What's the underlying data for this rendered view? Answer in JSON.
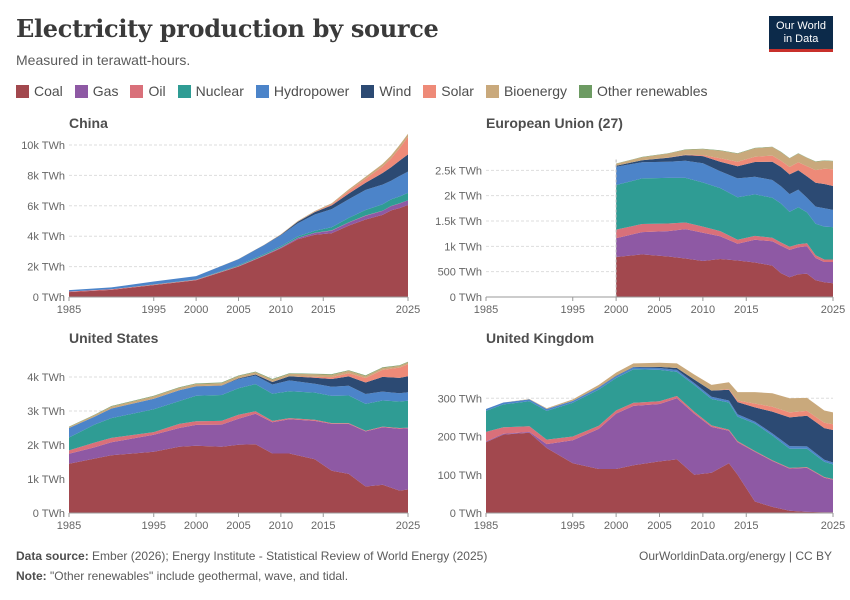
{
  "header": {
    "title": "Electricity production by source",
    "subtitle": "Measured in terawatt-hours.",
    "logo_line1": "Our World",
    "logo_line2": "in Data"
  },
  "legend": [
    {
      "name": "Coal",
      "color": "#a2484e"
    },
    {
      "name": "Gas",
      "color": "#8e59a4"
    },
    {
      "name": "Oil",
      "color": "#d9707a"
    },
    {
      "name": "Nuclear",
      "color": "#2f9c94"
    },
    {
      "name": "Hydropower",
      "color": "#4c84c9"
    },
    {
      "name": "Wind",
      "color": "#2c4a73"
    },
    {
      "name": "Solar",
      "color": "#ee8a78"
    },
    {
      "name": "Bioenergy",
      "color": "#c9a97c"
    },
    {
      "name": "Other renewables",
      "color": "#6d9b63"
    }
  ],
  "footer": {
    "source_label": "Data source:",
    "source_text": "Ember (2026); Energy Institute - Statistical Review of World Energy (2025)",
    "note_label": "Note:",
    "note_text": "\"Other renewables\" include geothermal, wave, and tidal.",
    "url": "OurWorldinData.org/energy | CC BY"
  },
  "chart_data": [
    {
      "type": "area",
      "title": "China",
      "ylim": [
        0,
        10000
      ],
      "yticks": [
        0,
        2000,
        4000,
        6000,
        8000,
        10000
      ],
      "ytick_labels": [
        "0 TWh",
        "2k TWh",
        "4k TWh",
        "6k TWh",
        "8k TWh",
        "10k TWh"
      ],
      "xlim": [
        1985,
        2025
      ],
      "xticks": [
        1985,
        1995,
        2000,
        2005,
        2010,
        2015,
        2025
      ],
      "x": [
        1985,
        1990,
        1995,
        2000,
        2005,
        2008,
        2010,
        2012,
        2014,
        2016,
        2018,
        2020,
        2022,
        2023,
        2024,
        2025
      ],
      "series": [
        {
          "name": "Coal",
          "values": [
            320,
            470,
            780,
            1100,
            2000,
            2700,
            3200,
            3800,
            4100,
            4200,
            4700,
            5100,
            5400,
            5700,
            5850,
            6050
          ]
        },
        {
          "name": "Gas",
          "values": [
            0,
            0,
            5,
            10,
            20,
            30,
            50,
            80,
            120,
            170,
            200,
            250,
            270,
            280,
            300,
            310
          ]
        },
        {
          "name": "Oil",
          "values": [
            40,
            35,
            30,
            25,
            20,
            15,
            10,
            10,
            10,
            10,
            10,
            10,
            10,
            10,
            10,
            10
          ]
        },
        {
          "name": "Nuclear",
          "values": [
            0,
            0,
            12,
            17,
            53,
            68,
            74,
            97,
            132,
            213,
            295,
            366,
            417,
            434,
            451,
            480
          ]
        },
        {
          "name": "Hydropower",
          "values": [
            92,
            126,
            190,
            222,
            397,
            585,
            722,
            870,
            1064,
            1193,
            1232,
            1322,
            1300,
            1226,
            1350,
            1400
          ]
        },
        {
          "name": "Wind",
          "values": [
            0,
            0,
            0,
            1,
            2,
            15,
            45,
            100,
            160,
            240,
            366,
            467,
            762,
            886,
            997,
            1130
          ]
        },
        {
          "name": "Solar",
          "values": [
            0,
            0,
            0,
            0,
            0,
            0,
            1,
            6,
            23,
            75,
            177,
            261,
            428,
            584,
            834,
            1150
          ]
        },
        {
          "name": "Bioenergy",
          "values": [
            0,
            0,
            0,
            2,
            5,
            10,
            25,
            40,
            50,
            70,
            100,
            130,
            170,
            190,
            200,
            210
          ]
        },
        {
          "name": "Other renewables",
          "values": [
            0,
            0,
            0,
            0,
            0,
            0,
            0,
            0,
            0,
            0,
            0,
            0,
            0,
            0,
            0,
            0
          ]
        }
      ]
    },
    {
      "type": "area",
      "title": "European Union (27)",
      "ylim": [
        0,
        3000
      ],
      "yticks": [
        0,
        500,
        1000,
        1500,
        2000,
        2500
      ],
      "ytick_labels": [
        "0 TWh",
        "500 TWh",
        "1k TWh",
        "1.5k TWh",
        "2k TWh",
        "2.5k TWh"
      ],
      "xlim": [
        1985,
        2025
      ],
      "xticks": [
        1985,
        1995,
        2000,
        2005,
        2010,
        2015,
        2025
      ],
      "x": [
        2000,
        2003,
        2006,
        2008,
        2010,
        2012,
        2014,
        2016,
        2018,
        2019,
        2020,
        2021,
        2022,
        2023,
        2024,
        2025
      ],
      "series": [
        {
          "name": "Coal",
          "values": [
            790,
            840,
            800,
            760,
            710,
            750,
            720,
            680,
            620,
            470,
            390,
            450,
            460,
            330,
            290,
            270
          ]
        },
        {
          "name": "Gas",
          "values": [
            370,
            440,
            500,
            580,
            560,
            450,
            330,
            450,
            480,
            540,
            540,
            530,
            540,
            440,
            400,
            420
          ]
        },
        {
          "name": "Oil",
          "values": [
            170,
            160,
            150,
            130,
            120,
            100,
            80,
            75,
            70,
            65,
            60,
            60,
            60,
            55,
            50,
            50
          ]
        },
        {
          "name": "Nuclear",
          "values": [
            880,
            900,
            900,
            880,
            870,
            850,
            840,
            820,
            790,
            770,
            690,
            730,
            610,
            620,
            650,
            640
          ]
        },
        {
          "name": "Hydropower",
          "values": [
            360,
            320,
            320,
            340,
            380,
            330,
            370,
            350,
            350,
            340,
            350,
            350,
            290,
            340,
            360,
            340
          ]
        },
        {
          "name": "Wind",
          "values": [
            20,
            40,
            80,
            110,
            140,
            190,
            240,
            290,
            360,
            380,
            390,
            380,
            420,
            470,
            480,
            470
          ]
        },
        {
          "name": "Solar",
          "values": [
            0,
            0,
            3,
            7,
            20,
            70,
            90,
            105,
            120,
            125,
            145,
            160,
            200,
            250,
            300,
            330
          ]
        },
        {
          "name": "Bioenergy",
          "values": [
            40,
            60,
            80,
            100,
            120,
            150,
            160,
            165,
            170,
            170,
            170,
            170,
            165,
            165,
            160,
            160
          ]
        },
        {
          "name": "Other renewables",
          "values": [
            5,
            5,
            6,
            6,
            6,
            6,
            7,
            7,
            7,
            7,
            7,
            7,
            7,
            7,
            7,
            7
          ]
        }
      ]
    },
    {
      "type": "area",
      "title": "United States",
      "ylim": [
        0,
        4500
      ],
      "yticks": [
        0,
        1000,
        2000,
        3000,
        4000
      ],
      "ytick_labels": [
        "0 TWh",
        "1k TWh",
        "2k TWh",
        "3k TWh",
        "4k TWh"
      ],
      "xlim": [
        1985,
        2025
      ],
      "xticks": [
        1985,
        1995,
        2000,
        2005,
        2010,
        2015,
        2025
      ],
      "x": [
        1985,
        1988,
        1990,
        1995,
        1998,
        2000,
        2003,
        2005,
        2007,
        2009,
        2011,
        2014,
        2016,
        2018,
        2020,
        2022,
        2024,
        2025
      ],
      "series": [
        {
          "name": "Coal",
          "values": [
            1450,
            1600,
            1700,
            1800,
            1950,
            1980,
            1950,
            2010,
            2020,
            1750,
            1750,
            1580,
            1240,
            1150,
            780,
            830,
            660,
            690
          ]
        },
        {
          "name": "Gas",
          "values": [
            290,
            330,
            380,
            500,
            550,
            610,
            650,
            760,
            900,
            920,
            1010,
            1130,
            1380,
            1470,
            1620,
            1690,
            1820,
            1800
          ]
        },
        {
          "name": "Oil",
          "values": [
            100,
            140,
            130,
            80,
            120,
            110,
            110,
            120,
            70,
            40,
            30,
            30,
            25,
            25,
            20,
            20,
            20,
            20
          ]
        },
        {
          "name": "Nuclear",
          "values": [
            380,
            530,
            580,
            670,
            670,
            750,
            760,
            780,
            800,
            800,
            790,
            800,
            800,
            810,
            790,
            770,
            780,
            790
          ]
        },
        {
          "name": "Hydropower",
          "values": [
            280,
            230,
            280,
            310,
            320,
            270,
            270,
            270,
            250,
            270,
            320,
            260,
            270,
            290,
            290,
            260,
            240,
            250
          ]
        },
        {
          "name": "Wind",
          "values": [
            0,
            0,
            3,
            3,
            3,
            6,
            11,
            18,
            34,
            74,
            120,
            180,
            227,
            272,
            338,
            434,
            453,
            470
          ]
        },
        {
          "name": "Solar",
          "values": [
            0,
            0,
            0,
            0,
            0,
            0,
            1,
            1,
            1,
            1,
            4,
            28,
            56,
            95,
            132,
            205,
            303,
            360
          ]
        },
        {
          "name": "Bioenergy",
          "values": [
            30,
            50,
            60,
            70,
            70,
            70,
            70,
            70,
            70,
            70,
            70,
            70,
            70,
            70,
            60,
            60,
            55,
            55
          ]
        },
        {
          "name": "Other renewables",
          "values": [
            10,
            12,
            15,
            15,
            15,
            15,
            15,
            15,
            15,
            15,
            16,
            16,
            17,
            17,
            17,
            16,
            16,
            16
          ]
        }
      ]
    },
    {
      "type": "area",
      "title": "United Kingdom",
      "ylim": [
        0,
        400
      ],
      "yticks": [
        0,
        100,
        200,
        300
      ],
      "ytick_labels": [
        "0 TWh",
        "100 TWh",
        "200 TWh",
        "300 TWh"
      ],
      "xlim": [
        1985,
        2025
      ],
      "xticks": [
        1985,
        1995,
        2000,
        2005,
        2010,
        2015,
        2025
      ],
      "x": [
        1985,
        1987,
        1990,
        1992,
        1995,
        1998,
        2000,
        2002,
        2005,
        2007,
        2009,
        2011,
        2013,
        2014,
        2016,
        2018,
        2020,
        2022,
        2024,
        2025
      ],
      "series": [
        {
          "name": "Coal",
          "values": [
            185,
            205,
            210,
            170,
            130,
            115,
            115,
            125,
            135,
            140,
            100,
            105,
            130,
            100,
            30,
            16,
            6,
            3,
            2,
            2
          ]
        },
        {
          "name": "Gas",
          "values": [
            2,
            2,
            2,
            10,
            60,
            105,
            145,
            155,
            150,
            160,
            160,
            120,
            85,
            85,
            130,
            120,
            110,
            115,
            90,
            85
          ]
        },
        {
          "name": "Oil",
          "values": [
            25,
            17,
            15,
            12,
            10,
            8,
            8,
            8,
            7,
            6,
            5,
            4,
            3,
            3,
            2,
            2,
            2,
            2,
            2,
            2
          ]
        },
        {
          "name": "Nuclear",
          "values": [
            55,
            60,
            65,
            75,
            88,
            95,
            85,
            88,
            82,
            63,
            70,
            69,
            71,
            64,
            72,
            65,
            50,
            48,
            40,
            38
          ]
        },
        {
          "name": "Hydropower",
          "values": [
            5,
            5,
            5,
            5,
            5,
            5,
            5,
            5,
            5,
            5,
            5,
            6,
            5,
            6,
            5,
            5,
            7,
            6,
            5,
            5
          ]
        },
        {
          "name": "Wind",
          "values": [
            0,
            0,
            0,
            0,
            0,
            1,
            1,
            1,
            3,
            5,
            9,
            16,
            28,
            32,
            37,
            57,
            75,
            80,
            83,
            85
          ]
        },
        {
          "name": "Solar",
          "values": [
            0,
            0,
            0,
            0,
            0,
            0,
            0,
            0,
            0,
            0,
            0,
            0,
            2,
            4,
            10,
            13,
            13,
            13,
            14,
            15
          ]
        },
        {
          "name": "Bioenergy",
          "values": [
            0,
            0,
            1,
            2,
            4,
            6,
            8,
            9,
            11,
            12,
            13,
            15,
            18,
            22,
            30,
            35,
            37,
            34,
            32,
            31
          ]
        },
        {
          "name": "Other renewables",
          "values": [
            0,
            0,
            0,
            0,
            0,
            0,
            0,
            0,
            0,
            0,
            0,
            0,
            0,
            0,
            0,
            0,
            0,
            0,
            0,
            0
          ]
        }
      ]
    }
  ]
}
